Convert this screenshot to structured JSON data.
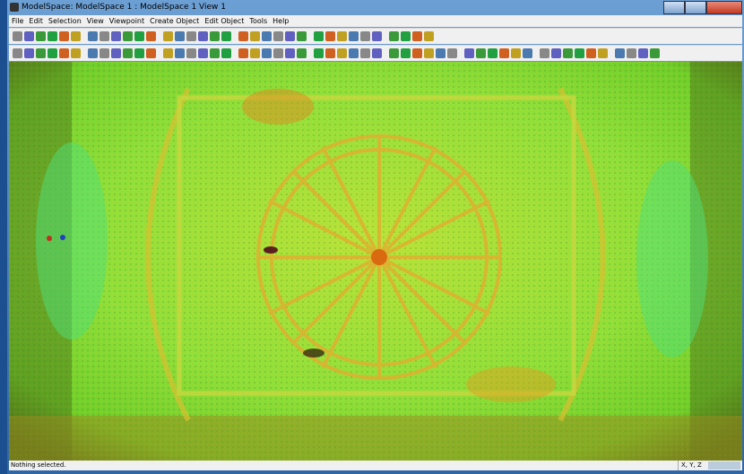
{
  "window": {
    "title": "ModelSpace: ModelSpace 1 : ModelSpace 1 View 1"
  },
  "menu": [
    "File",
    "Edit",
    "Selection",
    "View",
    "Viewpoint",
    "Create Object",
    "Edit Object",
    "Tools",
    "Help"
  ],
  "status": {
    "message": "Nothing selected.",
    "coords": "X, Y, Z"
  }
}
